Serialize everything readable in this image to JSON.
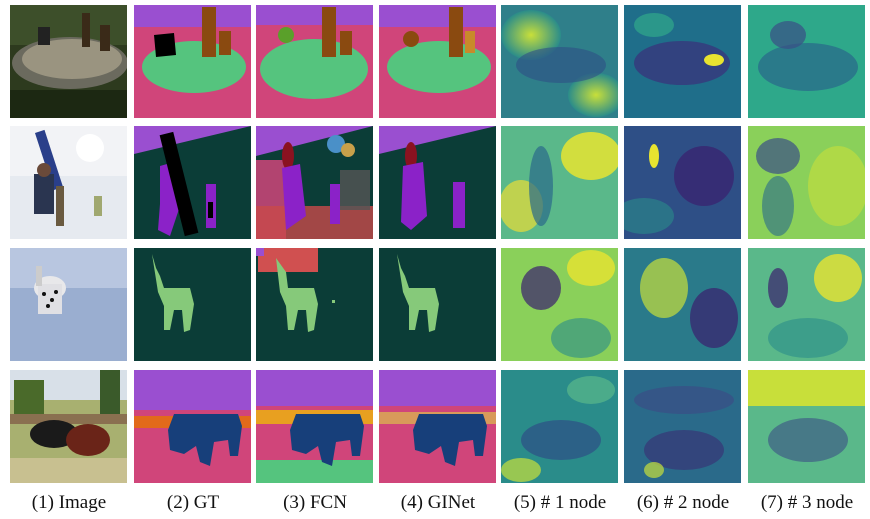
{
  "columns": [
    {
      "label": "(1) Image"
    },
    {
      "label": "(2) GT"
    },
    {
      "label": "(3) FCN"
    },
    {
      "label": "(4) GINet"
    },
    {
      "label": "(5) # 1 node"
    },
    {
      "label": "(6) # 2 node"
    },
    {
      "label": "(7) # 3 node"
    }
  ],
  "rows": [
    {
      "scene": "patio-with-chairs"
    },
    {
      "scene": "snowboarder-in-snow"
    },
    {
      "scene": "dalmatian-in-snow"
    },
    {
      "scene": "cows-in-field"
    }
  ],
  "palette": {
    "pink": "#d0457a",
    "green": "#55c47e",
    "purple": "#9a4fd0",
    "brown": "#8a4a10",
    "dark_teal": "#0b3d37",
    "violet": "#8b22c8",
    "light_green": "#86c97a",
    "navy": "#173f7a",
    "orange": "#e26a1a",
    "heat_low": "#3b1f6e",
    "heat_mid": "#2a8c8a",
    "heat_high": "#e8e430"
  }
}
